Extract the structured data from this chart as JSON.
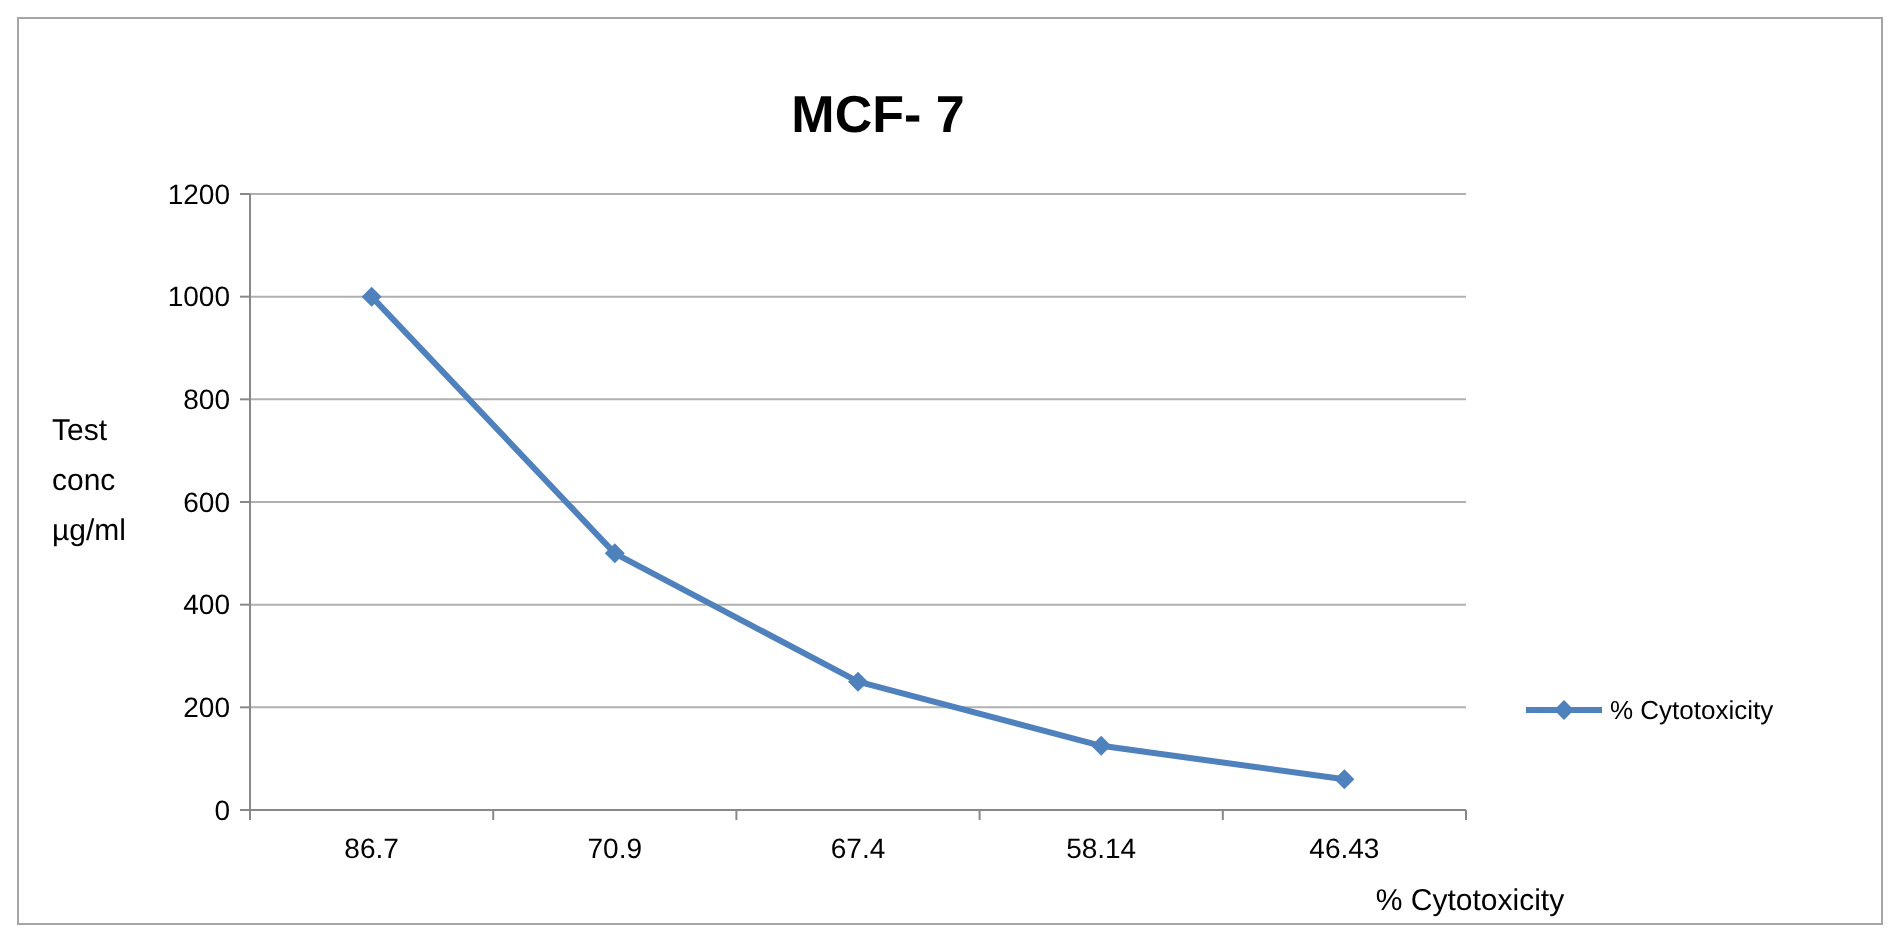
{
  "chart_data": {
    "type": "line",
    "title": "MCF- 7",
    "xlabel": "% Cytotoxicity",
    "ylabel": "Test\nconc\nµg/ml",
    "categories": [
      "86.7",
      "70.9",
      "67.4",
      "58.14",
      "46.43"
    ],
    "series": [
      {
        "name": "% Cytotoxicity",
        "color": "#4f81bd",
        "values": [
          1000,
          500,
          250,
          125,
          60
        ]
      }
    ],
    "ylim": [
      0,
      1200
    ],
    "yticks": [
      0,
      200,
      400,
      600,
      800,
      1000,
      1200
    ],
    "grid": "y",
    "legend": "right",
    "marker": "diamond",
    "line_style": "solid"
  }
}
